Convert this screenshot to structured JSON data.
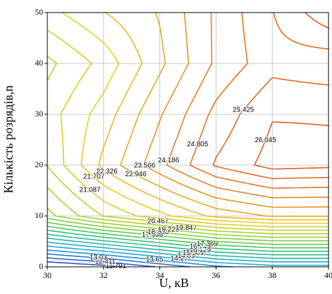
{
  "chart_data": {
    "type": "contour",
    "x_label": "U, кВ",
    "y_label": "Кількість розрядів,n",
    "x": [
      30,
      32,
      34,
      36,
      38,
      40
    ],
    "y": [
      0,
      10,
      20,
      30,
      40,
      50
    ],
    "z": [
      [
        11,
        11.5,
        12.5,
        13.5,
        14,
        14
      ],
      [
        19,
        20.5,
        21.5,
        22.5,
        23,
        23
      ],
      [
        20.5,
        22.5,
        24,
        25.5,
        26.3,
        26.2
      ],
      [
        20.8,
        22,
        23.5,
        25,
        26,
        26
      ],
      [
        20.3,
        21.3,
        22.8,
        24.3,
        25.2,
        25
      ],
      [
        21.5,
        22.3,
        23,
        24.3,
        25.4,
        26.5
      ]
    ],
    "levels": [
      11.791,
      12.411,
      13.03,
      13.65,
      14.27,
      14.89,
      15.509,
      16.129,
      16.749,
      17.369,
      17.988,
      18.608,
      19.228,
      19.847,
      20.467,
      21.087,
      21.707,
      22.326,
      22.946,
      23.566,
      24.186,
      24.805,
      25.425,
      26.045,
      26.66
    ],
    "colorscale": [
      "#3048c8",
      "#20a8d8",
      "#30c070",
      "#9ad030",
      "#e8d020",
      "#e88020",
      "#e05020"
    ],
    "xlim": [
      30,
      40
    ],
    "ylim": [
      0,
      50
    ],
    "xticks": [
      30,
      32,
      34,
      36,
      38,
      40
    ],
    "yticks": [
      0,
      10,
      20,
      30,
      40,
      50
    ],
    "grid": true
  }
}
